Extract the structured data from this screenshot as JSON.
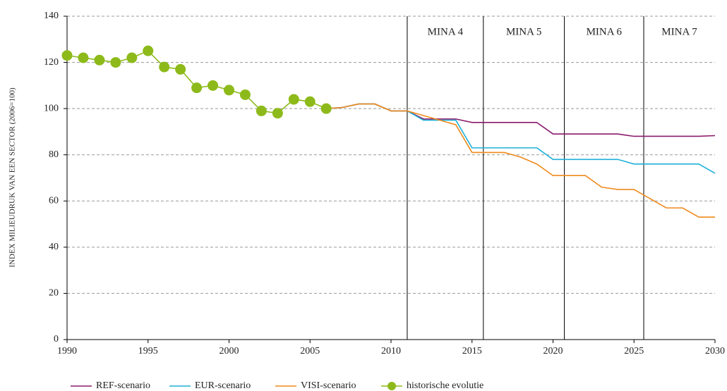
{
  "chart_data": {
    "type": "line",
    "y_label": "INDEX MILIEUDRUK VAN EEN SECTOR (2006=100)",
    "xlim": [
      1990,
      2030
    ],
    "xticks": [
      1990,
      1995,
      2000,
      2005,
      2010,
      2015,
      2020,
      2025,
      2030
    ],
    "ylim": [
      0,
      140
    ],
    "yticks": [
      0,
      20,
      40,
      60,
      80,
      100,
      120,
      140
    ],
    "grid": true,
    "legend": "bottom",
    "regions": [
      {
        "label": "MINA 4",
        "from": 2011,
        "to": 2015.7
      },
      {
        "label": "MINA 5",
        "from": 2015.7,
        "to": 2020.7
      },
      {
        "label": "MINA 6",
        "from": 2020.7,
        "to": 2025.6
      },
      {
        "label": "MINA 7",
        "from": 2025.6,
        "to": 2030
      }
    ],
    "series": [
      {
        "name": "REF-scenario",
        "color": "#8b1a6b",
        "markers": false,
        "x": [
          2006,
          2007,
          2008,
          2009,
          2010,
          2011,
          2012,
          2013,
          2014,
          2015,
          2016,
          2017,
          2018,
          2019,
          2020,
          2021,
          2022,
          2023,
          2024,
          2025,
          2026,
          2027,
          2028,
          2029,
          2030
        ],
        "values": [
          100,
          100.5,
          102,
          102,
          99,
          99,
          95.5,
          95.5,
          95.5,
          94,
          94,
          94,
          94,
          94,
          89,
          89,
          89,
          89,
          89,
          88,
          88,
          88,
          88,
          88,
          88.3
        ]
      },
      {
        "name": "EUR-scenario",
        "color": "#1fb0d8",
        "markers": false,
        "x": [
          2006,
          2007,
          2008,
          2009,
          2010,
          2011,
          2012,
          2013,
          2014,
          2015,
          2016,
          2017,
          2018,
          2019,
          2020,
          2021,
          2022,
          2023,
          2024,
          2025,
          2026,
          2027,
          2028,
          2029,
          2030
        ],
        "values": [
          100,
          100.5,
          102,
          102,
          99,
          99,
          95,
          95,
          95,
          83,
          83,
          83,
          83,
          83,
          78,
          78,
          78,
          78,
          78,
          76,
          76,
          76,
          76,
          76,
          72
        ]
      },
      {
        "name": "VISI-scenario",
        "color": "#ef8a1c",
        "markers": false,
        "x": [
          2006,
          2007,
          2008,
          2009,
          2010,
          2011,
          2012,
          2013,
          2014,
          2015,
          2016,
          2017,
          2018,
          2019,
          2020,
          2021,
          2022,
          2023,
          2024,
          2025,
          2026,
          2027,
          2028,
          2029,
          2030
        ],
        "values": [
          100,
          100.5,
          102,
          102,
          99,
          99,
          97,
          95,
          93,
          81,
          81,
          81,
          79,
          76,
          71,
          71,
          71,
          66,
          65,
          65,
          61,
          57,
          57,
          53,
          53
        ]
      },
      {
        "name": "historische evolutie",
        "color": "#8dba1a",
        "markers": true,
        "x": [
          1990,
          1991,
          1992,
          1993,
          1994,
          1995,
          1996,
          1997,
          1998,
          1999,
          2000,
          2001,
          2002,
          2003,
          2004,
          2005,
          2006
        ],
        "values": [
          123,
          122,
          121,
          120,
          122,
          125,
          118,
          117,
          109,
          110,
          108,
          106,
          99,
          98,
          104,
          103,
          100
        ]
      }
    ]
  }
}
